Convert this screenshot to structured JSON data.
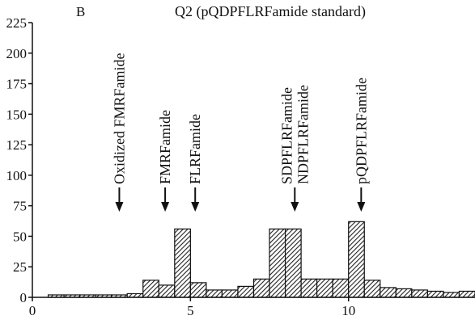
{
  "chart_data": {
    "type": "histogram",
    "panel_label": "B",
    "title": "Q2 (pQDPFLRFamide standard)",
    "bins": [
      0.5,
      1,
      1.5,
      2,
      2.5,
      3,
      3.5,
      4,
      4.5,
      5,
      5.5,
      6,
      6.5,
      7,
      7.5,
      8,
      8.5,
      9,
      9.5,
      10,
      10.5,
      11,
      11.5,
      12,
      12.5,
      13,
      13.5,
      14
    ],
    "values": [
      2,
      2,
      2,
      2,
      2,
      3,
      14,
      10,
      56,
      12,
      6,
      6,
      9,
      15,
      56,
      56,
      15,
      15,
      15,
      62,
      14,
      8,
      7,
      6,
      5,
      4,
      5
    ],
    "color": "#555555",
    "xlim": [
      0,
      14
    ],
    "xticks": [
      0,
      5,
      10
    ],
    "ylim": [
      0,
      225
    ],
    "yticks": [
      0,
      25,
      50,
      75,
      100,
      125,
      150,
      175,
      200,
      225
    ],
    "annotations": [
      {
        "labels": [
          "Oxidized FMRFamide"
        ],
        "x": 2.75
      },
      {
        "labels": [
          "FMRFamide"
        ],
        "x": 4.2
      },
      {
        "labels": [
          "FLRFamide"
        ],
        "x": 5.15
      },
      {
        "labels": [
          "SDPFLRFamide",
          "NDPFLRFamide"
        ],
        "x": 8.3
      },
      {
        "labels": [
          "pQDPFLRFamide"
        ],
        "x": 10.4
      }
    ]
  }
}
